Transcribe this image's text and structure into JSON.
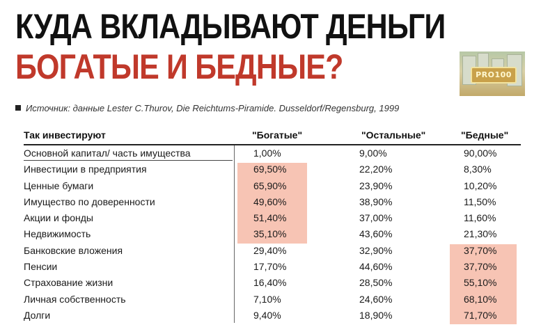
{
  "title": {
    "line1": "КУДА ВКЛАДЫВАЮТ ДЕНЬГИ",
    "line2": "БОГАТЫЕ И БЕДНЫЕ?"
  },
  "logo": {
    "text": "PRO100"
  },
  "source": "Источник: данные Lester C.Thurov, Die Reichtums-Piramide. Dusseldorf/Regensburg, 1999",
  "colors": {
    "title_red": "#c0392b",
    "highlight": "#f7c4b4"
  },
  "table": {
    "headers": [
      "Так инвестируют",
      "\"Богатые\"",
      "\"Остальные\"",
      "\"Бедные\""
    ],
    "rows": [
      [
        "Основной капитал/ часть имущества",
        "1,00%",
        "9,00%",
        "90,00%"
      ],
      [
        "Инвестиции в предприятия",
        "69,50%",
        "22,20%",
        "8,30%"
      ],
      [
        "Ценные бумаги",
        "65,90%",
        "23,90%",
        "10,20%"
      ],
      [
        "Имущество по доверенности",
        "49,60%",
        "38,90%",
        "11,50%"
      ],
      [
        "Акции и фонды",
        "51,40%",
        "37,00%",
        "11,60%"
      ],
      [
        "Недвижимость",
        "35,10%",
        "43,60%",
        "21,30%"
      ],
      [
        "Банковские вложения",
        "29,40%",
        "32,90%",
        "37,70%"
      ],
      [
        "Пенсии",
        "17,70%",
        "44,60%",
        "37,70%"
      ],
      [
        "Страхование жизни",
        "16,40%",
        "28,50%",
        "55,10%"
      ],
      [
        "Личная собственность",
        "7,10%",
        "24,60%",
        "68,10%"
      ],
      [
        "Долги",
        "9,40%",
        "18,90%",
        "71,70%"
      ]
    ],
    "highlighted_rich_rows": [
      1,
      2,
      3,
      4,
      5
    ],
    "highlighted_poor_rows": [
      6,
      7,
      8,
      9,
      10
    ]
  }
}
